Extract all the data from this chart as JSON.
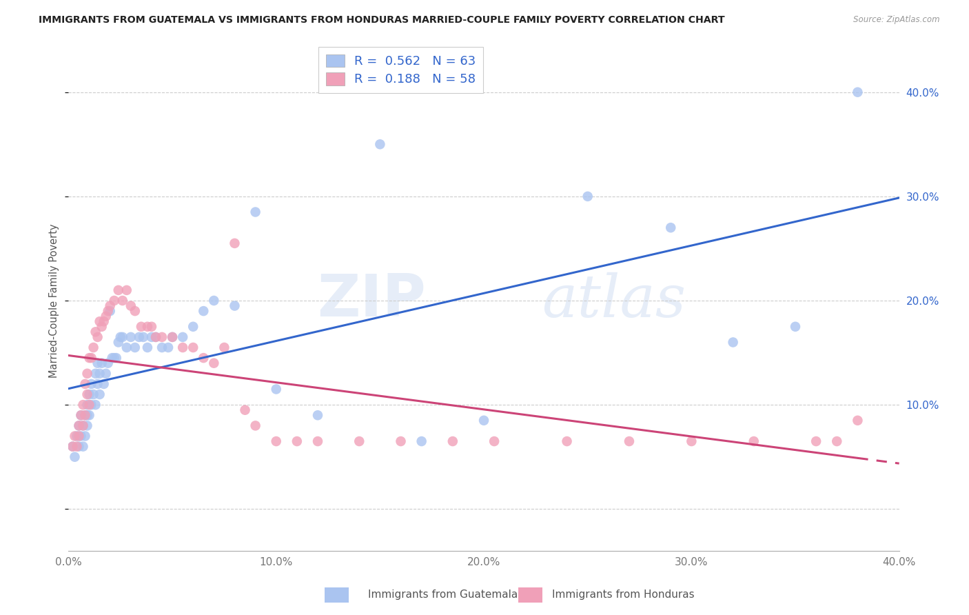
{
  "title": "IMMIGRANTS FROM GUATEMALA VS IMMIGRANTS FROM HONDURAS MARRIED-COUPLE FAMILY POVERTY CORRELATION CHART",
  "source": "Source: ZipAtlas.com",
  "ylabel": "Married-Couple Family Poverty",
  "legend_label1": "Immigrants from Guatemala",
  "legend_label2": "Immigrants from Honduras",
  "R1": "0.562",
  "N1": "63",
  "R2": "0.188",
  "N2": "58",
  "color_guatemala": "#aac4f0",
  "color_honduras": "#f0a0b8",
  "line_color_guatemala": "#3366cc",
  "line_color_honduras": "#cc4477",
  "background_color": "#ffffff",
  "watermark_zip": "ZIP",
  "watermark_atlas": "atlas",
  "xmin": 0.0,
  "xmax": 0.4,
  "ymin": -0.04,
  "ymax": 0.44,
  "guatemala_x": [
    0.002,
    0.003,
    0.004,
    0.005,
    0.005,
    0.006,
    0.006,
    0.007,
    0.007,
    0.008,
    0.008,
    0.009,
    0.009,
    0.009,
    0.01,
    0.01,
    0.011,
    0.011,
    0.012,
    0.013,
    0.013,
    0.014,
    0.014,
    0.015,
    0.015,
    0.016,
    0.017,
    0.018,
    0.019,
    0.02,
    0.021,
    0.022,
    0.023,
    0.024,
    0.025,
    0.026,
    0.028,
    0.03,
    0.032,
    0.034,
    0.036,
    0.038,
    0.04,
    0.042,
    0.045,
    0.048,
    0.05,
    0.055,
    0.06,
    0.065,
    0.07,
    0.08,
    0.09,
    0.1,
    0.12,
    0.15,
    0.17,
    0.2,
    0.25,
    0.29,
    0.32,
    0.35,
    0.38
  ],
  "guatemala_y": [
    0.06,
    0.05,
    0.07,
    0.06,
    0.08,
    0.07,
    0.09,
    0.06,
    0.08,
    0.09,
    0.07,
    0.1,
    0.08,
    0.09,
    0.09,
    0.11,
    0.1,
    0.12,
    0.11,
    0.1,
    0.13,
    0.12,
    0.14,
    0.11,
    0.13,
    0.14,
    0.12,
    0.13,
    0.14,
    0.19,
    0.145,
    0.145,
    0.145,
    0.16,
    0.165,
    0.165,
    0.155,
    0.165,
    0.155,
    0.165,
    0.165,
    0.155,
    0.165,
    0.165,
    0.155,
    0.155,
    0.165,
    0.165,
    0.175,
    0.19,
    0.2,
    0.195,
    0.285,
    0.115,
    0.09,
    0.35,
    0.065,
    0.085,
    0.3,
    0.27,
    0.16,
    0.175,
    0.4
  ],
  "honduras_x": [
    0.002,
    0.003,
    0.004,
    0.005,
    0.005,
    0.006,
    0.007,
    0.007,
    0.008,
    0.008,
    0.009,
    0.009,
    0.01,
    0.01,
    0.011,
    0.012,
    0.013,
    0.014,
    0.015,
    0.016,
    0.017,
    0.018,
    0.019,
    0.02,
    0.022,
    0.024,
    0.026,
    0.028,
    0.03,
    0.032,
    0.035,
    0.038,
    0.04,
    0.042,
    0.045,
    0.05,
    0.055,
    0.06,
    0.065,
    0.07,
    0.075,
    0.08,
    0.085,
    0.09,
    0.1,
    0.11,
    0.12,
    0.14,
    0.16,
    0.185,
    0.205,
    0.24,
    0.27,
    0.3,
    0.33,
    0.36,
    0.37,
    0.38
  ],
  "honduras_y": [
    0.06,
    0.07,
    0.06,
    0.08,
    0.07,
    0.09,
    0.08,
    0.1,
    0.09,
    0.12,
    0.11,
    0.13,
    0.1,
    0.145,
    0.145,
    0.155,
    0.17,
    0.165,
    0.18,
    0.175,
    0.18,
    0.185,
    0.19,
    0.195,
    0.2,
    0.21,
    0.2,
    0.21,
    0.195,
    0.19,
    0.175,
    0.175,
    0.175,
    0.165,
    0.165,
    0.165,
    0.155,
    0.155,
    0.145,
    0.14,
    0.155,
    0.255,
    0.095,
    0.08,
    0.065,
    0.065,
    0.065,
    0.065,
    0.065,
    0.065,
    0.065,
    0.065,
    0.065,
    0.065,
    0.065,
    0.065,
    0.065,
    0.085
  ],
  "ytick_vals": [
    0.0,
    0.1,
    0.2,
    0.3,
    0.4
  ],
  "ytick_labels_right": [
    "",
    "10.0%",
    "20.0%",
    "30.0%",
    "40.0%"
  ],
  "xtick_vals": [
    0.0,
    0.1,
    0.2,
    0.3,
    0.4
  ],
  "xtick_labels": [
    "0.0%",
    "10.0%",
    "20.0%",
    "30.0%",
    "40.0%"
  ]
}
